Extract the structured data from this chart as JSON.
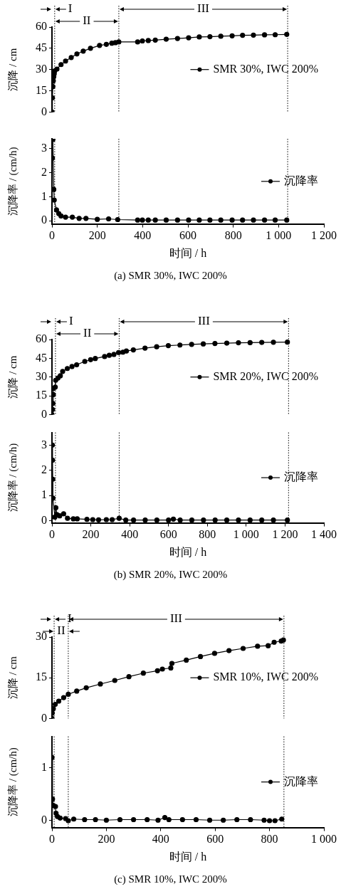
{
  "chart_data": [
    {
      "type": "line",
      "ylabel": "沉降 / cm",
      "xlim": [
        0,
        1200
      ],
      "ylim": [
        0,
        60
      ],
      "yticks": [
        0,
        15,
        30,
        45,
        60
      ],
      "tick_labels": "y",
      "legend": "right",
      "marker": "circle",
      "line_style": "solid",
      "grid": false,
      "ref_lines": [
        {
          "axis": "x",
          "value": 12,
          "line_style": "dotted",
          "label": "I"
        },
        {
          "axis": "x",
          "value": 295,
          "line_style": "dotted",
          "label": "II"
        },
        {
          "axis": "x",
          "value": 1040,
          "line_style": "dotted",
          "label": "III"
        }
      ],
      "series": [
        {
          "name": "SMR 30%, IWC 200%",
          "color": "#000000",
          "x": [
            0,
            2,
            4,
            6,
            8,
            10,
            12,
            22,
            40,
            60,
            85,
            110,
            138,
            170,
            210,
            240,
            264,
            280,
            295,
            378,
            399,
            425,
            456,
            504,
            554,
            603,
            650,
            697,
            745,
            795,
            841,
            889,
            938,
            985,
            1036
          ],
          "values": [
            0,
            10,
            18,
            22,
            25,
            27,
            29,
            30.3,
            33.5,
            36,
            38.5,
            41,
            43,
            45,
            47,
            47.8,
            48.6,
            49,
            49.5,
            49.5,
            50.2,
            50.5,
            50.8,
            51.4,
            51.9,
            52.4,
            53,
            53.2,
            53.5,
            53.8,
            54.2,
            54.3,
            54.5,
            54.6,
            54.8
          ]
        }
      ]
    },
    {
      "type": "line",
      "xlabel": "时间 / h",
      "ylabel": "沉降率 / (cm/h)",
      "xlim": [
        0,
        1200
      ],
      "xticks": [
        0,
        200,
        400,
        600,
        800,
        {
          "value": 1000,
          "label": "1 000"
        },
        {
          "value": 1200,
          "label": "1 200"
        }
      ],
      "ylim": [
        -0.13,
        3.4
      ],
      "yticks": [
        0,
        1,
        2,
        3
      ],
      "legend": "right",
      "marker": "circle",
      "line_style": "solid",
      "grid": false,
      "ref_lines": [
        {
          "axis": "x",
          "value": 12,
          "line_style": "dotted"
        },
        {
          "axis": "x",
          "value": 295,
          "line_style": "dotted"
        },
        {
          "axis": "x",
          "value": 1040,
          "line_style": "dotted"
        }
      ],
      "annotations": [
        "(a) SMR 30%, IWC 200%"
      ],
      "series": [
        {
          "name": "沉降率",
          "color": "#000000",
          "x": [
            2,
            4,
            8,
            10,
            20,
            30,
            40,
            60,
            90,
            120,
            150,
            200,
            250,
            290,
            378,
            399,
            425,
            456,
            504,
            554,
            603,
            650,
            697,
            745,
            795,
            841,
            889,
            938,
            985,
            1036
          ],
          "values": [
            2.6,
            3.37,
            1.3,
            0.86,
            0.45,
            0.3,
            0.2,
            0.15,
            0.15,
            0.1,
            0.1,
            0.06,
            0.08,
            0.05,
            0.03,
            0.03,
            0.03,
            0.03,
            0.03,
            0.03,
            0.03,
            0.03,
            0.03,
            0.03,
            0.03,
            0.03,
            0.03,
            0.03,
            0.03,
            0.03
          ]
        }
      ]
    },
    {
      "type": "line",
      "ylabel": "沉降 / cm",
      "xlim": [
        0,
        1400
      ],
      "ylim": [
        0,
        60
      ],
      "yticks": [
        0,
        15,
        30,
        45,
        60
      ],
      "tick_labels": "y",
      "legend": "right",
      "marker": "circle",
      "line_style": "solid",
      "grid": false,
      "ref_lines": [
        {
          "axis": "x",
          "value": 18,
          "line_style": "dotted",
          "label": "I"
        },
        {
          "axis": "x",
          "value": 346,
          "line_style": "dotted",
          "label": "II"
        },
        {
          "axis": "x",
          "value": 1218,
          "line_style": "dotted",
          "label": "III"
        }
      ],
      "series": [
        {
          "name": "SMR 20%, IWC 200%",
          "color": "#000000",
          "x": [
            0,
            3,
            5,
            7,
            8,
            17,
            19,
            31,
            43,
            55,
            79,
            103,
            127,
            169,
            199,
            223,
            271,
            295,
            319,
            343,
            365,
            383,
            419,
            479,
            539,
            599,
            659,
            719,
            779,
            839,
            900,
            960,
            1020,
            1080,
            1140,
            1212
          ],
          "values": [
            0,
            4,
            8.9,
            15.9,
            21,
            22,
            27.4,
            29.2,
            31,
            34.5,
            36.8,
            38.4,
            39.8,
            42.5,
            43.9,
            44.8,
            46.4,
            47.4,
            48.1,
            49.6,
            49.9,
            50.8,
            51.7,
            53.1,
            54.2,
            55.1,
            55.6,
            56.1,
            56.5,
            56.8,
            57.1,
            57.4,
            57.5,
            57.7,
            57.8,
            57.9
          ]
        }
      ]
    },
    {
      "type": "line",
      "xlabel": "时间 / h",
      "ylabel": "沉降率 / (cm/h)",
      "xlim": [
        0,
        1400
      ],
      "xticks": [
        0,
        200,
        400,
        600,
        800,
        {
          "value": 1000,
          "label": "1 000"
        },
        {
          "value": 1200,
          "label": "1 200"
        },
        {
          "value": 1400,
          "label": "1 400"
        }
      ],
      "ylim": [
        -0.08,
        3.5
      ],
      "yticks": [
        0,
        1,
        2,
        3
      ],
      "legend": "right",
      "marker": "circle",
      "line_style": "solid",
      "grid": false,
      "ref_lines": [
        {
          "axis": "x",
          "value": 18,
          "line_style": "dotted"
        },
        {
          "axis": "x",
          "value": 346,
          "line_style": "dotted"
        },
        {
          "axis": "x",
          "value": 1218,
          "line_style": "dotted"
        }
      ],
      "annotations": [
        "(b) SMR 20%, IWC 200%"
      ],
      "series": [
        {
          "name": "沉降率",
          "color": "#000000",
          "x": [
            2,
            3,
            4,
            5,
            15,
            20,
            25,
            40,
            60,
            80,
            110,
            130,
            180,
            210,
            240,
            280,
            310,
            346,
            380,
            420,
            480,
            540,
            600,
            625,
            660,
            720,
            780,
            840,
            900,
            960,
            1020,
            1080,
            1140,
            1212
          ],
          "values": [
            3.0,
            2.4,
            1.65,
            0.9,
            0.15,
            0.52,
            0.25,
            0.2,
            0.28,
            0.1,
            0.08,
            0.08,
            0.06,
            0.05,
            0.04,
            0.05,
            0.05,
            0.1,
            0.03,
            0.03,
            0.03,
            0.03,
            0.03,
            0.07,
            0.03,
            0.03,
            0.03,
            0.03,
            0.03,
            0.03,
            0.03,
            0.03,
            0.03,
            0.03
          ]
        }
      ]
    },
    {
      "type": "line",
      "ylabel": "沉降 / cm",
      "xlim": [
        0,
        1000
      ],
      "ylim": [
        0,
        30
      ],
      "yticks": [
        0,
        15,
        30
      ],
      "tick_labels": "y",
      "legend": "right",
      "marker": "circle",
      "line_style": "solid",
      "grid": false,
      "ref_lines": [
        {
          "axis": "x",
          "value": 8,
          "line_style": "dotted",
          "label": "I"
        },
        {
          "axis": "x",
          "value": 60,
          "line_style": "dotted",
          "label": "II"
        },
        {
          "axis": "x",
          "value": 853,
          "line_style": "dotted",
          "label": "III"
        }
      ],
      "series": [
        {
          "name": "SMR 10%, IWC 200%",
          "color": "#000000",
          "x": [
            0,
            1,
            5,
            12,
            25,
            43,
            60,
            91,
            126,
            178,
            231,
            283,
            336,
            388,
            406,
            437,
            441,
            494,
            546,
            598,
            651,
            703,
            756,
            795,
            817,
            843,
            851
          ],
          "values": [
            0,
            2,
            3.6,
            5.2,
            6.4,
            7.7,
            8.9,
            10.1,
            11.3,
            12.7,
            14,
            15.4,
            16.7,
            17.6,
            18.2,
            18.6,
            20.3,
            21.5,
            22.8,
            24,
            25,
            25.8,
            26.6,
            26.8,
            28.1,
            28.5,
            28.9
          ]
        }
      ]
    },
    {
      "type": "line",
      "xlabel": "时间 / h",
      "ylabel": "沉降率 / (cm/h)",
      "xlim": [
        0,
        1000
      ],
      "xticks": [
        0,
        200,
        400,
        600,
        800,
        {
          "value": 1000,
          "label": "1 000"
        }
      ],
      "ylim": [
        -0.13,
        1.6
      ],
      "yticks": [
        0,
        1
      ],
      "legend": "right",
      "marker": "circle",
      "line_style": "solid",
      "grid": false,
      "ref_lines": [
        {
          "axis": "x",
          "value": 8,
          "line_style": "dotted"
        },
        {
          "axis": "x",
          "value": 60,
          "line_style": "dotted"
        },
        {
          "axis": "x",
          "value": 853,
          "line_style": "dotted"
        }
      ],
      "annotations": [
        "(c) SMR 10%, IWC 200%"
      ],
      "series": [
        {
          "name": "沉降率",
          "color": "#000000",
          "x": [
            0,
            2,
            5,
            13,
            15,
            20,
            30,
            50,
            60,
            80,
            120,
            160,
            200,
            250,
            300,
            350,
            390,
            415,
            430,
            480,
            530,
            580,
            630,
            680,
            730,
            780,
            800,
            820,
            845
          ],
          "values": [
            1.2,
            0.41,
            0.29,
            0.27,
            0.14,
            0.08,
            0.05,
            0.04,
            0.0,
            0.03,
            0.02,
            0.02,
            0.01,
            0.02,
            0.02,
            0.02,
            0.01,
            0.06,
            0.02,
            0.02,
            0.02,
            0.01,
            0.01,
            0.02,
            0.02,
            0.01,
            0.0,
            0.0,
            0.03
          ]
        }
      ]
    }
  ]
}
